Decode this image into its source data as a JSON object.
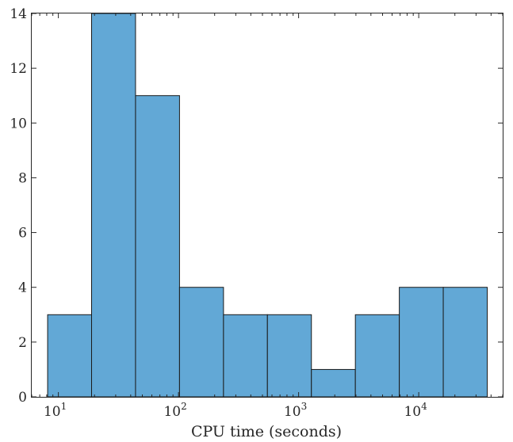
{
  "chart_data": {
    "type": "bar",
    "xlabel": "CPU time (seconds)",
    "ylabel": "",
    "x_scale": "log",
    "xlim": [
      6.0,
      50000
    ],
    "ylim": [
      0,
      14
    ],
    "grid": false,
    "bin_edges": [
      8.14,
      18.9,
      43.9,
      102,
      237,
      550,
      1278,
      2968,
      6893,
      16008,
      37176
    ],
    "values": [
      3,
      14,
      11,
      4,
      3,
      3,
      1,
      3,
      4,
      4
    ],
    "y_ticks": [
      0,
      2,
      4,
      6,
      8,
      10,
      12,
      14
    ],
    "x_ticks": [
      {
        "value": 10,
        "base": "10",
        "exp": "1"
      },
      {
        "value": 100,
        "base": "10",
        "exp": "2"
      },
      {
        "value": 1000,
        "base": "10",
        "exp": "3"
      },
      {
        "value": 10000,
        "base": "10",
        "exp": "4"
      }
    ],
    "bar_color": "#62a8d6",
    "edge_color": "#1a1a1a"
  }
}
